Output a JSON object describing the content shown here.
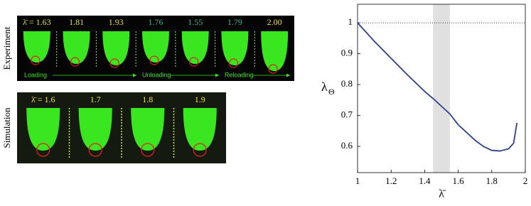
{
  "experiment": {
    "side_label": "Experiment",
    "frames": [
      {
        "label": "λ̄ = 1.63",
        "color": "#e8df4a"
      },
      {
        "label": "1.81",
        "color": "#e8df4a"
      },
      {
        "label": "1.93",
        "color": "#e8df4a"
      },
      {
        "label": "1.76",
        "color": "#3fb58a"
      },
      {
        "label": "1.55",
        "color": "#3fb58a"
      },
      {
        "label": "1.79",
        "color": "#3fb58a"
      },
      {
        "label": "2.00",
        "color": "#f2e24a"
      }
    ],
    "phases": [
      "Loading",
      "Unloading",
      "Reloading"
    ]
  },
  "simulation": {
    "side_label": "Simulation",
    "frames": [
      {
        "label": "λ̄ = 1.6",
        "color": "#f2e24a"
      },
      {
        "label": "1.7",
        "color": "#f2e24a"
      },
      {
        "label": "1.8",
        "color": "#f2e24a"
      },
      {
        "label": "1.9",
        "color": "#f2e24a"
      }
    ]
  },
  "chart_data": {
    "type": "line",
    "xlabel": "λ̄",
    "ylabel": [
      "λ",
      "Θ"
    ],
    "x": [
      1,
      1.05,
      1.1,
      1.2,
      1.3,
      1.4,
      1.45,
      1.5,
      1.55,
      1.6,
      1.7,
      1.75,
      1.8,
      1.85,
      1.9,
      1.93,
      1.95
    ],
    "series": [
      {
        "color": "#2b3f8c",
        "values": [
          1.0,
          0.97,
          0.94,
          0.885,
          0.83,
          0.778,
          0.755,
          0.73,
          0.705,
          0.67,
          0.62,
          0.6,
          0.587,
          0.585,
          0.592,
          0.61,
          0.676
        ]
      }
    ],
    "xlim": [
      1,
      2
    ],
    "ylim": [
      0.515,
      1.06
    ],
    "xticks": [
      1,
      1.2,
      1.4,
      1.6,
      1.8,
      2
    ],
    "yticks": [
      0.6,
      0.7,
      0.8,
      0.9,
      1
    ],
    "hline": 1,
    "band": [
      1.45,
      1.55
    ],
    "band_color": "#e0e0e0"
  }
}
